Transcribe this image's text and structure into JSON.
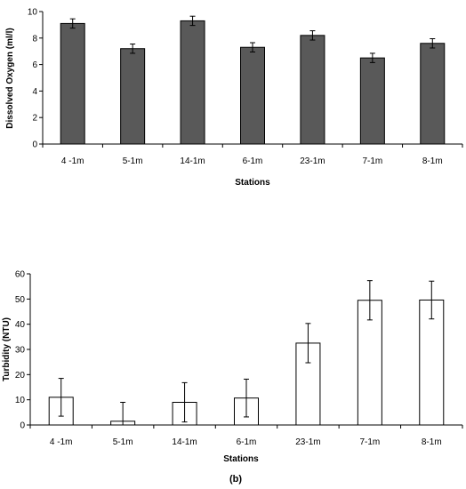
{
  "chart_data": [
    {
      "type": "bar",
      "categories": [
        "4 -1m",
        "5-1m",
        "14-1m",
        "6-1m",
        "23-1m",
        "7-1m",
        "8-1m"
      ],
      "values": [
        9.1,
        7.2,
        9.3,
        7.3,
        8.2,
        6.5,
        7.6
      ],
      "errors": [
        0.35,
        0.35,
        0.35,
        0.35,
        0.35,
        0.35,
        0.35
      ],
      "xlabel": "Stations",
      "ylabel": "Dissolved Oxygen (ml/l)",
      "ylim": [
        0,
        10
      ],
      "yticks": [
        0,
        2,
        4,
        6,
        8,
        10
      ],
      "bar_color": "#595959",
      "grid": false,
      "panel_label": ""
    },
    {
      "type": "bar",
      "categories": [
        "4 -1m",
        "5-1m",
        "14-1m",
        "6-1m",
        "23-1m",
        "7-1m",
        "8-1m"
      ],
      "values": [
        11,
        1.5,
        9,
        10.7,
        32.5,
        49.5,
        49.6
      ],
      "errors": [
        7.5,
        7.5,
        7.8,
        7.5,
        7.8,
        7.8,
        7.5
      ],
      "xlabel": "Stations",
      "ylabel": "Turbidity (NTU)",
      "ylim": [
        0,
        60
      ],
      "yticks": [
        0,
        10,
        20,
        30,
        40,
        50,
        60
      ],
      "bar_color": "#ffffff",
      "grid": false,
      "panel_label": "(b)"
    }
  ]
}
